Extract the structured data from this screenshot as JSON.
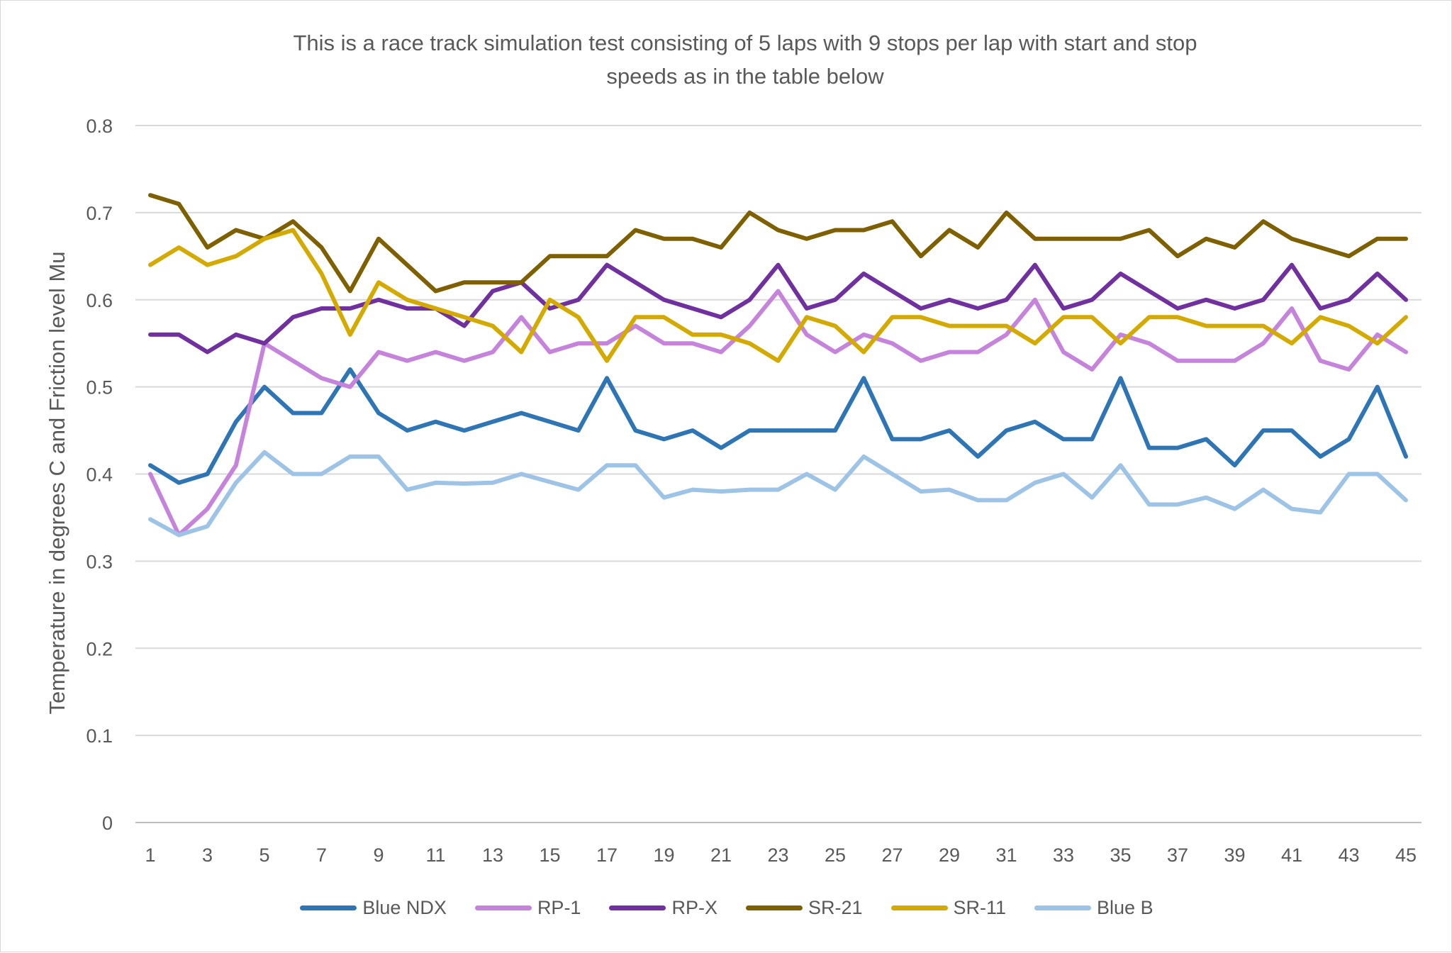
{
  "chart_data": {
    "type": "line",
    "title_line1": "This is a race track simulation test consisting of 5 laps with 9 stops per lap with start and stop",
    "title_line2": "speeds as in the table below",
    "xlabel": "",
    "ylabel": "Temperature in degrees C and Friction level Mu",
    "ylim": [
      0,
      0.8
    ],
    "xlim": [
      1,
      45
    ],
    "y_ticks": [
      "0",
      "0.1",
      "0.2",
      "0.3",
      "0.4",
      "0.5",
      "0.6",
      "0.7",
      "0.8"
    ],
    "x_ticks": [
      "1",
      "3",
      "5",
      "7",
      "9",
      "11",
      "13",
      "15",
      "17",
      "19",
      "21",
      "23",
      "25",
      "27",
      "29",
      "31",
      "33",
      "35",
      "37",
      "39",
      "41",
      "43",
      "45"
    ],
    "grid": "horizontal",
    "legend_position": "bottom",
    "series": [
      {
        "name": "Blue NDX",
        "color": "#2e75b6",
        "values": [
          0.41,
          0.39,
          0.4,
          0.46,
          0.5,
          0.47,
          0.47,
          0.52,
          0.47,
          0.45,
          0.46,
          0.45,
          0.46,
          0.47,
          0.46,
          0.45,
          0.51,
          0.45,
          0.44,
          0.45,
          0.43,
          0.45,
          0.45,
          0.45,
          0.45,
          0.51,
          0.44,
          0.44,
          0.45,
          0.42,
          0.45,
          0.46,
          0.44,
          0.44,
          0.51,
          0.43,
          0.43,
          0.44,
          0.41,
          0.45,
          0.45,
          0.42,
          0.44,
          0.5,
          0.42
        ]
      },
      {
        "name": "RP-1",
        "color": "#c583dc",
        "values": [
          0.4,
          0.33,
          0.36,
          0.41,
          0.55,
          0.53,
          0.51,
          0.5,
          0.54,
          0.53,
          0.54,
          0.53,
          0.54,
          0.58,
          0.54,
          0.55,
          0.55,
          0.57,
          0.55,
          0.55,
          0.54,
          0.57,
          0.61,
          0.56,
          0.54,
          0.56,
          0.55,
          0.53,
          0.54,
          0.54,
          0.56,
          0.6,
          0.54,
          0.52,
          0.56,
          0.55,
          0.53,
          0.53,
          0.53,
          0.55,
          0.59,
          0.53,
          0.52,
          0.56,
          0.54
        ]
      },
      {
        "name": "RP-X",
        "color": "#7030a0",
        "values": [
          0.56,
          0.56,
          0.54,
          0.56,
          0.55,
          0.58,
          0.59,
          0.59,
          0.6,
          0.59,
          0.59,
          0.57,
          0.61,
          0.62,
          0.59,
          0.6,
          0.64,
          0.62,
          0.6,
          0.59,
          0.58,
          0.6,
          0.64,
          0.59,
          0.6,
          0.63,
          0.61,
          0.59,
          0.6,
          0.59,
          0.6,
          0.64,
          0.59,
          0.6,
          0.63,
          0.61,
          0.59,
          0.6,
          0.59,
          0.6,
          0.64,
          0.59,
          0.6,
          0.63,
          0.6
        ]
      },
      {
        "name": "SR-21",
        "color": "#7f6000",
        "values": [
          0.72,
          0.71,
          0.66,
          0.68,
          0.67,
          0.69,
          0.66,
          0.61,
          0.67,
          0.64,
          0.61,
          0.62,
          0.62,
          0.62,
          0.65,
          0.65,
          0.65,
          0.68,
          0.67,
          0.67,
          0.66,
          0.7,
          0.68,
          0.67,
          0.68,
          0.68,
          0.69,
          0.65,
          0.68,
          0.66,
          0.7,
          0.67,
          0.67,
          0.67,
          0.67,
          0.68,
          0.65,
          0.67,
          0.66,
          0.69,
          0.67,
          0.66,
          0.65,
          0.67,
          0.67
        ]
      },
      {
        "name": "SR-11",
        "color": "#d4aa00",
        "values": [
          0.64,
          0.66,
          0.64,
          0.65,
          0.67,
          0.68,
          0.63,
          0.56,
          0.62,
          0.6,
          0.59,
          0.58,
          0.57,
          0.54,
          0.6,
          0.58,
          0.53,
          0.58,
          0.58,
          0.56,
          0.56,
          0.55,
          0.53,
          0.58,
          0.57,
          0.54,
          0.58,
          0.58,
          0.57,
          0.57,
          0.57,
          0.55,
          0.58,
          0.58,
          0.55,
          0.58,
          0.58,
          0.57,
          0.57,
          0.57,
          0.55,
          0.58,
          0.57,
          0.55,
          0.58
        ]
      },
      {
        "name": "Blue B",
        "color": "#9dc3e6",
        "values": [
          0.348,
          0.33,
          0.34,
          0.39,
          0.425,
          0.4,
          0.4,
          0.42,
          0.42,
          0.382,
          0.39,
          0.389,
          0.39,
          0.4,
          0.391,
          0.382,
          0.41,
          0.41,
          0.373,
          0.382,
          0.38,
          0.382,
          0.382,
          0.4,
          0.382,
          0.42,
          0.4,
          0.38,
          0.382,
          0.37,
          0.37,
          0.39,
          0.4,
          0.373,
          0.41,
          0.365,
          0.365,
          0.373,
          0.36,
          0.382,
          0.36,
          0.356,
          0.4,
          0.4,
          0.37
        ]
      }
    ]
  }
}
